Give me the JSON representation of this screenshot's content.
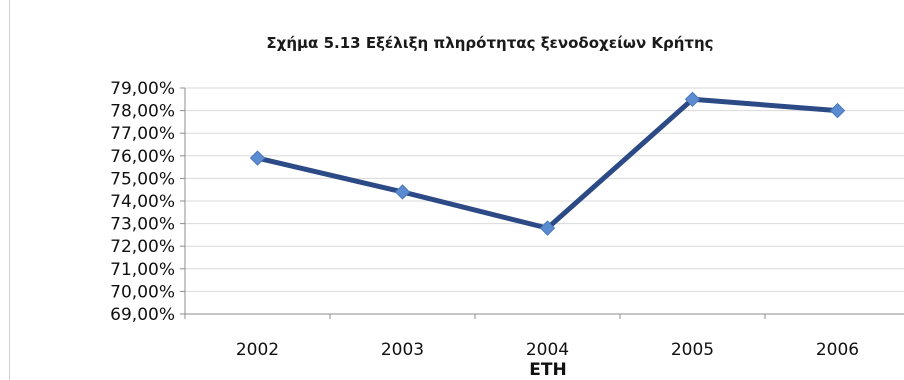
{
  "chart_data": {
    "type": "line",
    "title": "Σχήμα 5.13 Εξέλιξη πληρότητας ξενοδοχείων Κρήτης",
    "xlabel": "ΕΤΗ",
    "ylabel": "",
    "categories": [
      "2002",
      "2003",
      "2004",
      "2005",
      "2006"
    ],
    "series": [
      {
        "values": [
          75.9,
          74.4,
          72.8,
          78.5,
          78.0
        ]
      }
    ],
    "ylim": [
      69,
      79
    ],
    "yticks": [
      "79,00%",
      "78,00%",
      "77,00%",
      "76,00%",
      "75,00%",
      "74,00%",
      "73,00%",
      "72,00%",
      "71,00%",
      "70,00%",
      "69,00%"
    ],
    "grid": true,
    "legend": "none",
    "colors": {
      "line": "#2b4a86",
      "marker": "#5b8bd0",
      "grid": "#d9d9d9",
      "axis": "#8c8c8c"
    }
  }
}
